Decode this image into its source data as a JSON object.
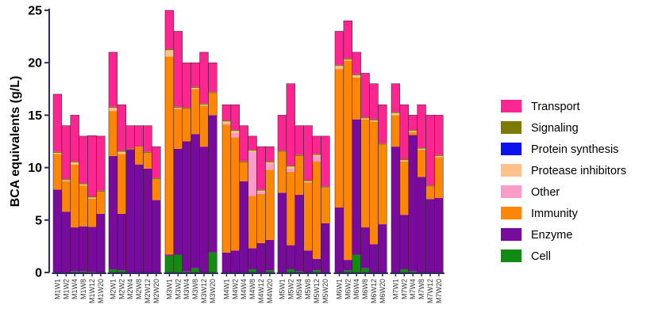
{
  "chart_data": {
    "type": "bar",
    "stacked": true,
    "ylabel": "BCA equivalents (g/L)",
    "ylim": [
      0,
      25
    ],
    "yticks": [
      0,
      5,
      10,
      15,
      20,
      25
    ],
    "legend_position": "right",
    "groups": [
      {
        "name": "M1",
        "categories": [
          "M1W1",
          "M1W2",
          "M1W4",
          "M1W8",
          "M1W12",
          "M1W20"
        ]
      },
      {
        "name": "M2",
        "categories": [
          "M2W1",
          "M2W2",
          "M2W4",
          "M2W8",
          "M2W12",
          "M2W20"
        ]
      },
      {
        "name": "M3",
        "categories": [
          "M3W1",
          "M3W2",
          "M3W4",
          "M3W8",
          "M3W12",
          "M3W20"
        ]
      },
      {
        "name": "M4",
        "categories": [
          "M4W1",
          "M4W2",
          "M4W4",
          "M4W8",
          "M4W12",
          "M4W20"
        ]
      },
      {
        "name": "M5",
        "categories": [
          "M5W1",
          "M5W2",
          "M5W4",
          "M5W8",
          "M5W12",
          "M5W20"
        ]
      },
      {
        "name": "M6",
        "categories": [
          "M6W1",
          "M6W2",
          "M6W4",
          "M6W8",
          "M6W12",
          "M6W20"
        ]
      },
      {
        "name": "M7",
        "categories": [
          "M7W1",
          "M7W2",
          "M7W4",
          "M7W8",
          "M7W12",
          "M7W20"
        ]
      }
    ],
    "series": [
      {
        "name": "Cell",
        "color": "#138a13",
        "values": [
          0,
          0,
          0.1,
          0.1,
          0.05,
          0,
          0.3,
          0.2,
          0,
          0,
          0,
          0,
          1.6,
          1.7,
          0.1,
          0.4,
          0,
          1.9,
          0,
          0,
          0,
          0.3,
          0,
          0.2,
          0,
          0.3,
          0.1,
          0,
          0.2,
          0,
          0,
          0.2,
          1.7,
          0.4,
          0,
          0,
          0,
          0.3,
          0.1,
          0,
          0,
          0
        ]
      },
      {
        "name": "Enzyme",
        "color": "#770b9c",
        "values": [
          7.9,
          5.8,
          4.2,
          4.3,
          4.3,
          5.6,
          10.8,
          5.4,
          11.7,
          10.3,
          9.9,
          6.9,
          0.1,
          10.1,
          12.4,
          12.8,
          12.0,
          13.1,
          1.9,
          2.1,
          8.7,
          2.0,
          2.8,
          2.9,
          7.6,
          2.3,
          7.3,
          2.1,
          1.1,
          4.7,
          6.2,
          1.0,
          12.9,
          3.9,
          2.7,
          4.6,
          12.0,
          5.2,
          13.0,
          9.1,
          7.0,
          7.1
        ]
      },
      {
        "name": "Immunity",
        "color": "#fb8607",
        "values": [
          3.4,
          2.9,
          6.0,
          3.9,
          2.7,
          2.1,
          4.3,
          5.7,
          0,
          1.7,
          1.5,
          2.0,
          18.9,
          3.8,
          3.1,
          4.3,
          3.9,
          2.1,
          12.2,
          10.8,
          1.8,
          5.0,
          4.7,
          6.7,
          3.9,
          7.0,
          3.7,
          6.5,
          9.3,
          3.4,
          13.2,
          19.0,
          4.0,
          10.3,
          11.7,
          7.6,
          3.0,
          5.1,
          0.3,
          2.6,
          1.2,
          3.9
        ]
      },
      {
        "name": "Other",
        "color": "#f99cc8",
        "values": [
          0,
          0,
          0,
          0,
          0,
          0,
          0,
          0,
          0,
          0,
          0,
          0,
          0,
          0,
          0,
          0,
          0,
          0,
          0.1,
          0.4,
          0,
          4.2,
          0.2,
          0.6,
          0,
          0.3,
          0,
          0,
          0.5,
          0,
          0,
          0,
          0,
          0,
          0,
          0,
          0,
          0,
          0,
          0,
          0,
          0
        ]
      },
      {
        "name": "Protease inhibitors",
        "color": "#fdc18c",
        "values": [
          0.1,
          0.1,
          0.2,
          0.1,
          0.1,
          0,
          0.3,
          0.2,
          0,
          0,
          0,
          0,
          0.6,
          0.1,
          0,
          0.1,
          0.1,
          0,
          0.2,
          0.2,
          0,
          0.1,
          0.1,
          0.1,
          0,
          0.2,
          0,
          0.1,
          0.1,
          0,
          0.3,
          0.1,
          0.2,
          0.1,
          0.1,
          0,
          0.2,
          0.1,
          0.1,
          0.1,
          0,
          0.1
        ]
      },
      {
        "name": "Protein synthesis",
        "color": "#0b12ee",
        "values": [
          0,
          0,
          0,
          0,
          0,
          0,
          0,
          0,
          0,
          0,
          0,
          0,
          0,
          0,
          0,
          0,
          0,
          0,
          0,
          0,
          0,
          0,
          0,
          0,
          0,
          0,
          0,
          0,
          0,
          0,
          0,
          0,
          0,
          0,
          0,
          0,
          0,
          0,
          0,
          0,
          0,
          0
        ]
      },
      {
        "name": "Signaling",
        "color": "#7d7a07",
        "values": [
          0.1,
          0.1,
          0.1,
          0.1,
          0.1,
          0.1,
          0.1,
          0.1,
          0.1,
          0,
          0.1,
          0.1,
          0.1,
          0.1,
          0.1,
          0.1,
          0.1,
          0.1,
          0.1,
          0.1,
          0.1,
          0.1,
          0.1,
          0.1,
          0.1,
          0.1,
          0.1,
          0.1,
          0.1,
          0.1,
          0.1,
          0.1,
          0.1,
          0.1,
          0.1,
          0.1,
          0.1,
          0.1,
          0.1,
          0.1,
          0.1,
          0.1
        ]
      },
      {
        "name": "Transport",
        "color": "#fb2690",
        "values": [
          5.5,
          5.1,
          4.4,
          4.5,
          5.8,
          5.2,
          5.2,
          4.4,
          2.2,
          2.0,
          2.5,
          3.0,
          3.7,
          7.2,
          4.3,
          2.3,
          4.9,
          2.8,
          1.5,
          2.4,
          3.4,
          1.3,
          4.1,
          1.4,
          3.4,
          7.8,
          2.8,
          5.2,
          1.7,
          4.8,
          3.2,
          3.6,
          2.1,
          4.2,
          3.4,
          3.7,
          2.7,
          5.2,
          1.4,
          4.1,
          6.7,
          3.8
        ]
      }
    ]
  }
}
